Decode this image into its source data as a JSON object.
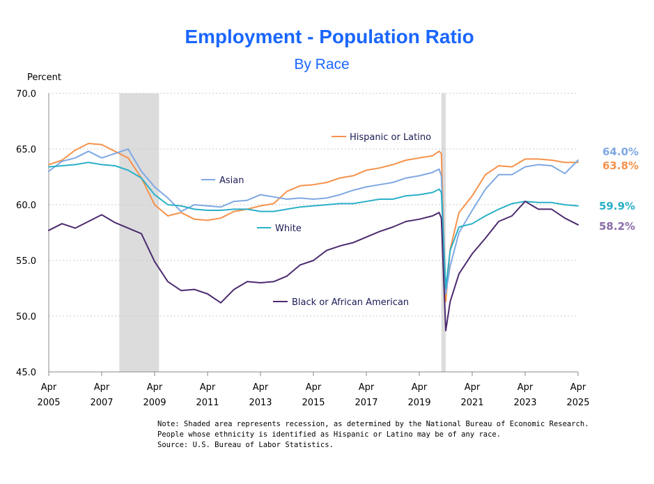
{
  "chart_data": {
    "type": "line",
    "title": "Employment - Population Ratio",
    "subtitle": "By Race",
    "ylabel": "Percent",
    "ylim": [
      45.0,
      70.0
    ],
    "yticks": [
      "70.0",
      "65.0",
      "60.0",
      "55.0",
      "50.0",
      "45.0"
    ],
    "xlim": [
      "2005-04",
      "2025-04"
    ],
    "xticks": [
      {
        "month": "Apr",
        "year": "2005"
      },
      {
        "month": "Apr",
        "year": "2007"
      },
      {
        "month": "Apr",
        "year": "2009"
      },
      {
        "month": "Apr",
        "year": "2011"
      },
      {
        "month": "Apr",
        "year": "2013"
      },
      {
        "month": "Apr",
        "year": "2015"
      },
      {
        "month": "Apr",
        "year": "2017"
      },
      {
        "month": "Apr",
        "year": "2019"
      },
      {
        "month": "Apr",
        "year": "2021"
      },
      {
        "month": "Apr",
        "year": "2023"
      },
      {
        "month": "Apr",
        "year": "2025"
      }
    ],
    "grid": "horizontal dotted",
    "recessions": [
      {
        "start": "2007-12",
        "end": "2009-06"
      },
      {
        "start": "2020-02",
        "end": "2020-04"
      }
    ],
    "series": [
      {
        "name": "Hispanic or Latino",
        "color": "#f5914a",
        "end_value": "63.8%",
        "points": [
          [
            "2005-04",
            63.6
          ],
          [
            "2005-10",
            64.0
          ],
          [
            "2006-04",
            64.9
          ],
          [
            "2006-10",
            65.5
          ],
          [
            "2007-04",
            65.4
          ],
          [
            "2007-10",
            64.8
          ],
          [
            "2008-04",
            64.2
          ],
          [
            "2008-10",
            62.4
          ],
          [
            "2009-04",
            60.0
          ],
          [
            "2009-10",
            59.0
          ],
          [
            "2010-04",
            59.3
          ],
          [
            "2010-10",
            58.7
          ],
          [
            "2011-04",
            58.6
          ],
          [
            "2011-10",
            58.8
          ],
          [
            "2012-04",
            59.4
          ],
          [
            "2012-10",
            59.6
          ],
          [
            "2013-04",
            59.9
          ],
          [
            "2013-10",
            60.1
          ],
          [
            "2014-04",
            61.2
          ],
          [
            "2014-10",
            61.7
          ],
          [
            "2015-04",
            61.8
          ],
          [
            "2015-10",
            62.0
          ],
          [
            "2016-04",
            62.4
          ],
          [
            "2016-10",
            62.6
          ],
          [
            "2017-04",
            63.1
          ],
          [
            "2017-10",
            63.3
          ],
          [
            "2018-04",
            63.6
          ],
          [
            "2018-10",
            64.0
          ],
          [
            "2019-04",
            64.2
          ],
          [
            "2019-10",
            64.4
          ],
          [
            "2020-01",
            64.8
          ],
          [
            "2020-02",
            64.6
          ],
          [
            "2020-04",
            51.3
          ],
          [
            "2020-06",
            56.0
          ],
          [
            "2020-10",
            59.3
          ],
          [
            "2021-04",
            60.8
          ],
          [
            "2021-10",
            62.7
          ],
          [
            "2022-04",
            63.5
          ],
          [
            "2022-10",
            63.4
          ],
          [
            "2023-04",
            64.1
          ],
          [
            "2023-10",
            64.1
          ],
          [
            "2024-04",
            64.0
          ],
          [
            "2024-10",
            63.8
          ],
          [
            "2025-04",
            63.8
          ]
        ]
      },
      {
        "name": "Asian",
        "color": "#7ea8e2",
        "end_value": "64.0%",
        "points": [
          [
            "2005-04",
            63.0
          ],
          [
            "2005-10",
            63.9
          ],
          [
            "2006-04",
            64.2
          ],
          [
            "2006-10",
            64.8
          ],
          [
            "2007-04",
            64.2
          ],
          [
            "2007-10",
            64.6
          ],
          [
            "2008-04",
            65.0
          ],
          [
            "2008-10",
            63.0
          ],
          [
            "2009-04",
            61.6
          ],
          [
            "2009-10",
            60.6
          ],
          [
            "2010-04",
            59.4
          ],
          [
            "2010-10",
            60.0
          ],
          [
            "2011-04",
            59.9
          ],
          [
            "2011-10",
            59.8
          ],
          [
            "2012-04",
            60.3
          ],
          [
            "2012-10",
            60.4
          ],
          [
            "2013-04",
            60.9
          ],
          [
            "2013-10",
            60.7
          ],
          [
            "2014-04",
            60.5
          ],
          [
            "2014-10",
            60.6
          ],
          [
            "2015-04",
            60.5
          ],
          [
            "2015-10",
            60.6
          ],
          [
            "2016-04",
            60.9
          ],
          [
            "2016-10",
            61.3
          ],
          [
            "2017-04",
            61.6
          ],
          [
            "2017-10",
            61.8
          ],
          [
            "2018-04",
            62.0
          ],
          [
            "2018-10",
            62.4
          ],
          [
            "2019-04",
            62.6
          ],
          [
            "2019-10",
            62.9
          ],
          [
            "2020-01",
            63.2
          ],
          [
            "2020-02",
            62.6
          ],
          [
            "2020-04",
            52.0
          ],
          [
            "2020-06",
            54.5
          ],
          [
            "2020-10",
            57.5
          ],
          [
            "2021-04",
            59.5
          ],
          [
            "2021-10",
            61.4
          ],
          [
            "2022-04",
            62.7
          ],
          [
            "2022-10",
            62.7
          ],
          [
            "2023-04",
            63.4
          ],
          [
            "2023-10",
            63.6
          ],
          [
            "2024-04",
            63.5
          ],
          [
            "2024-10",
            62.8
          ],
          [
            "2025-04",
            64.0
          ]
        ]
      },
      {
        "name": "White",
        "color": "#2ab0c8",
        "end_value": "59.9%",
        "points": [
          [
            "2005-04",
            63.4
          ],
          [
            "2005-10",
            63.5
          ],
          [
            "2006-04",
            63.6
          ],
          [
            "2006-10",
            63.8
          ],
          [
            "2007-04",
            63.6
          ],
          [
            "2007-10",
            63.5
          ],
          [
            "2008-04",
            63.1
          ],
          [
            "2008-10",
            62.4
          ],
          [
            "2009-04",
            60.9
          ],
          [
            "2009-10",
            60.0
          ],
          [
            "2010-04",
            59.9
          ],
          [
            "2010-10",
            59.6
          ],
          [
            "2011-04",
            59.5
          ],
          [
            "2011-10",
            59.5
          ],
          [
            "2012-04",
            59.6
          ],
          [
            "2012-10",
            59.6
          ],
          [
            "2013-04",
            59.4
          ],
          [
            "2013-10",
            59.4
          ],
          [
            "2014-04",
            59.6
          ],
          [
            "2014-10",
            59.8
          ],
          [
            "2015-04",
            59.9
          ],
          [
            "2015-10",
            60.0
          ],
          [
            "2016-04",
            60.1
          ],
          [
            "2016-10",
            60.1
          ],
          [
            "2017-04",
            60.3
          ],
          [
            "2017-10",
            60.5
          ],
          [
            "2018-04",
            60.5
          ],
          [
            "2018-10",
            60.8
          ],
          [
            "2019-04",
            60.9
          ],
          [
            "2019-10",
            61.1
          ],
          [
            "2020-01",
            61.4
          ],
          [
            "2020-02",
            61.1
          ],
          [
            "2020-04",
            52.5
          ],
          [
            "2020-06",
            55.9
          ],
          [
            "2020-10",
            58.0
          ],
          [
            "2021-04",
            58.3
          ],
          [
            "2021-10",
            59.0
          ],
          [
            "2022-04",
            59.6
          ],
          [
            "2022-10",
            60.1
          ],
          [
            "2023-04",
            60.3
          ],
          [
            "2023-10",
            60.2
          ],
          [
            "2024-04",
            60.2
          ],
          [
            "2024-10",
            60.0
          ],
          [
            "2025-04",
            59.9
          ]
        ]
      },
      {
        "name": "Black or African American",
        "color": "#4b2a6e",
        "end_value": "58.2%",
        "points": [
          [
            "2005-04",
            57.7
          ],
          [
            "2005-10",
            58.3
          ],
          [
            "2006-04",
            57.9
          ],
          [
            "2006-10",
            58.5
          ],
          [
            "2007-04",
            59.1
          ],
          [
            "2007-10",
            58.4
          ],
          [
            "2008-04",
            57.9
          ],
          [
            "2008-10",
            57.4
          ],
          [
            "2009-04",
            54.9
          ],
          [
            "2009-10",
            53.1
          ],
          [
            "2010-04",
            52.3
          ],
          [
            "2010-10",
            52.4
          ],
          [
            "2011-04",
            52.0
          ],
          [
            "2011-10",
            51.2
          ],
          [
            "2012-04",
            52.4
          ],
          [
            "2012-10",
            53.1
          ],
          [
            "2013-04",
            53.0
          ],
          [
            "2013-10",
            53.1
          ],
          [
            "2014-04",
            53.6
          ],
          [
            "2014-10",
            54.6
          ],
          [
            "2015-04",
            55.0
          ],
          [
            "2015-10",
            55.9
          ],
          [
            "2016-04",
            56.3
          ],
          [
            "2016-10",
            56.6
          ],
          [
            "2017-04",
            57.1
          ],
          [
            "2017-10",
            57.6
          ],
          [
            "2018-04",
            58.0
          ],
          [
            "2018-10",
            58.5
          ],
          [
            "2019-04",
            58.7
          ],
          [
            "2019-10",
            59.0
          ],
          [
            "2020-01",
            59.3
          ],
          [
            "2020-02",
            58.8
          ],
          [
            "2020-04",
            48.7
          ],
          [
            "2020-06",
            51.3
          ],
          [
            "2020-10",
            53.8
          ],
          [
            "2021-04",
            55.6
          ],
          [
            "2021-10",
            57.0
          ],
          [
            "2022-04",
            58.5
          ],
          [
            "2022-10",
            59.0
          ],
          [
            "2023-04",
            60.3
          ],
          [
            "2023-10",
            59.6
          ],
          [
            "2024-04",
            59.6
          ],
          [
            "2024-10",
            58.8
          ],
          [
            "2025-04",
            58.2
          ]
        ]
      }
    ],
    "labels": {
      "hispanic": "Hispanic or Latino",
      "asian": "Asian",
      "white": "White",
      "black": "Black or African American"
    },
    "end_labels": {
      "asian": "64.0%",
      "hispanic": "63.8%",
      "white": "59.9%",
      "black": "58.2%"
    }
  },
  "notes": [
    "Note: Shaded area represents recession, as determined by the National Bureau of Economic Research.",
    "People whose ethnicity is identified as Hispanic or Latino may be of any race.",
    "Source: U.S. Bureau of Labor Statistics."
  ]
}
